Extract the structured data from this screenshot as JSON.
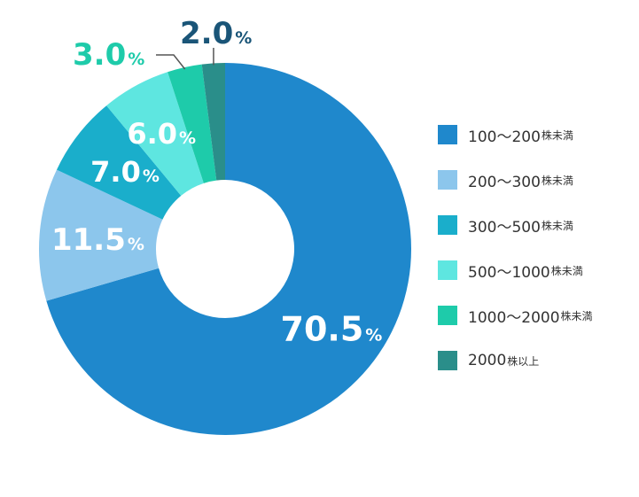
{
  "chart_data": {
    "type": "donut",
    "unit": "%",
    "categories": [
      "100〜200株未満",
      "200〜300株未満",
      "300〜500株未満",
      "500〜1000株未満",
      "1000〜2000株未満",
      "2000株以上"
    ],
    "values": [
      70.5,
      11.5,
      7.0,
      6.0,
      3.0,
      2.0
    ],
    "labels": [
      "70.5",
      "11.5",
      "7.0",
      "6.0",
      "3.0",
      "2.0"
    ],
    "colors": [
      "#1f88cc",
      "#8cc6ec",
      "#1aaecb",
      "#5ee6e0",
      "#1ecbaa",
      "#2a8e8a"
    ],
    "label_colors": [
      "#ffffff",
      "#ffffff",
      "#ffffff",
      "#ffffff",
      "#1ecbaa",
      "#1a5578"
    ],
    "legend_placement": "right",
    "legend": [
      {
        "range": "100〜200",
        "unit": "株未満"
      },
      {
        "range": "200〜300",
        "unit": "株未満"
      },
      {
        "range": "300〜500",
        "unit": "株未満"
      },
      {
        "range": "500〜1000",
        "unit": "株未満"
      },
      {
        "range": "1000〜2000",
        "unit": "株未満"
      },
      {
        "range": "2000",
        "unit": "株以上"
      }
    ]
  }
}
